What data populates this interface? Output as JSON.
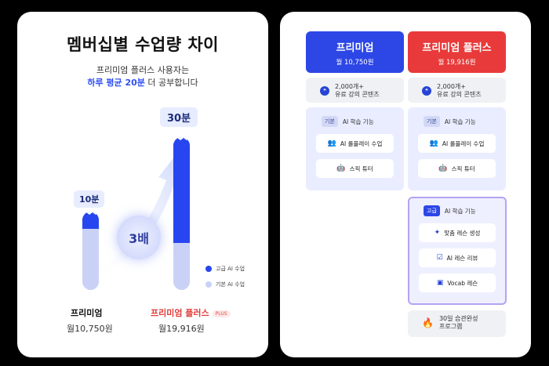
{
  "left": {
    "title": "멤버십별 수업량 차이",
    "subtitle_line1": "프리미엄 플러스 사용자는",
    "subtitle_highlight": "하루 평균 20분",
    "subtitle_rest": " 더 공부합니다",
    "tag_premium": "10분",
    "tag_plus": "30분",
    "multiplier": "3배",
    "legend_advanced": "고급 AI 수업",
    "legend_basic": "기본 AI 수업",
    "premium_name": "프리미엄",
    "premium_price": "월10,750원",
    "plus_name": "프리미엄 플러스",
    "plus_badge": "PLUS",
    "plus_price": "월19,916원"
  },
  "right": {
    "premium": {
      "name": "프리미엄",
      "price": "월 10,750원"
    },
    "plus": {
      "name": "프리미엄 플러스",
      "price": "월 19,916원"
    },
    "content_line1": "2,000개+",
    "content_line2": "유료 강의 콘텐츠",
    "basic_tag": "기본",
    "ai_learning": "AI 학습 기능",
    "roleplay": "AI 롤플레이 수업",
    "speak_tutor": "스픽 튜터",
    "advanced_tag": "고급",
    "custom_lesson": "맞춤 레슨 생성",
    "lesson_review": "AI 레슨 리뷰",
    "vocab_lesson": "Vocab 레슨",
    "habit_line1": "30일 습관완성",
    "habit_line2": "프로그램"
  },
  "colors": {
    "premium_blue": "#2d47e6",
    "plus_red": "#e83a3a",
    "bar_dark": "#2746f0",
    "bar_light": "#c9d2f6"
  },
  "chart_data": {
    "type": "bar",
    "categories": [
      "프리미엄",
      "프리미엄 플러스"
    ],
    "series": [
      {
        "name": "고급 AI 수업",
        "values": [
          0,
          20
        ]
      },
      {
        "name": "기본 AI 수업",
        "values": [
          10,
          10
        ]
      }
    ],
    "totals_label": [
      "10분",
      "30분"
    ]
  }
}
